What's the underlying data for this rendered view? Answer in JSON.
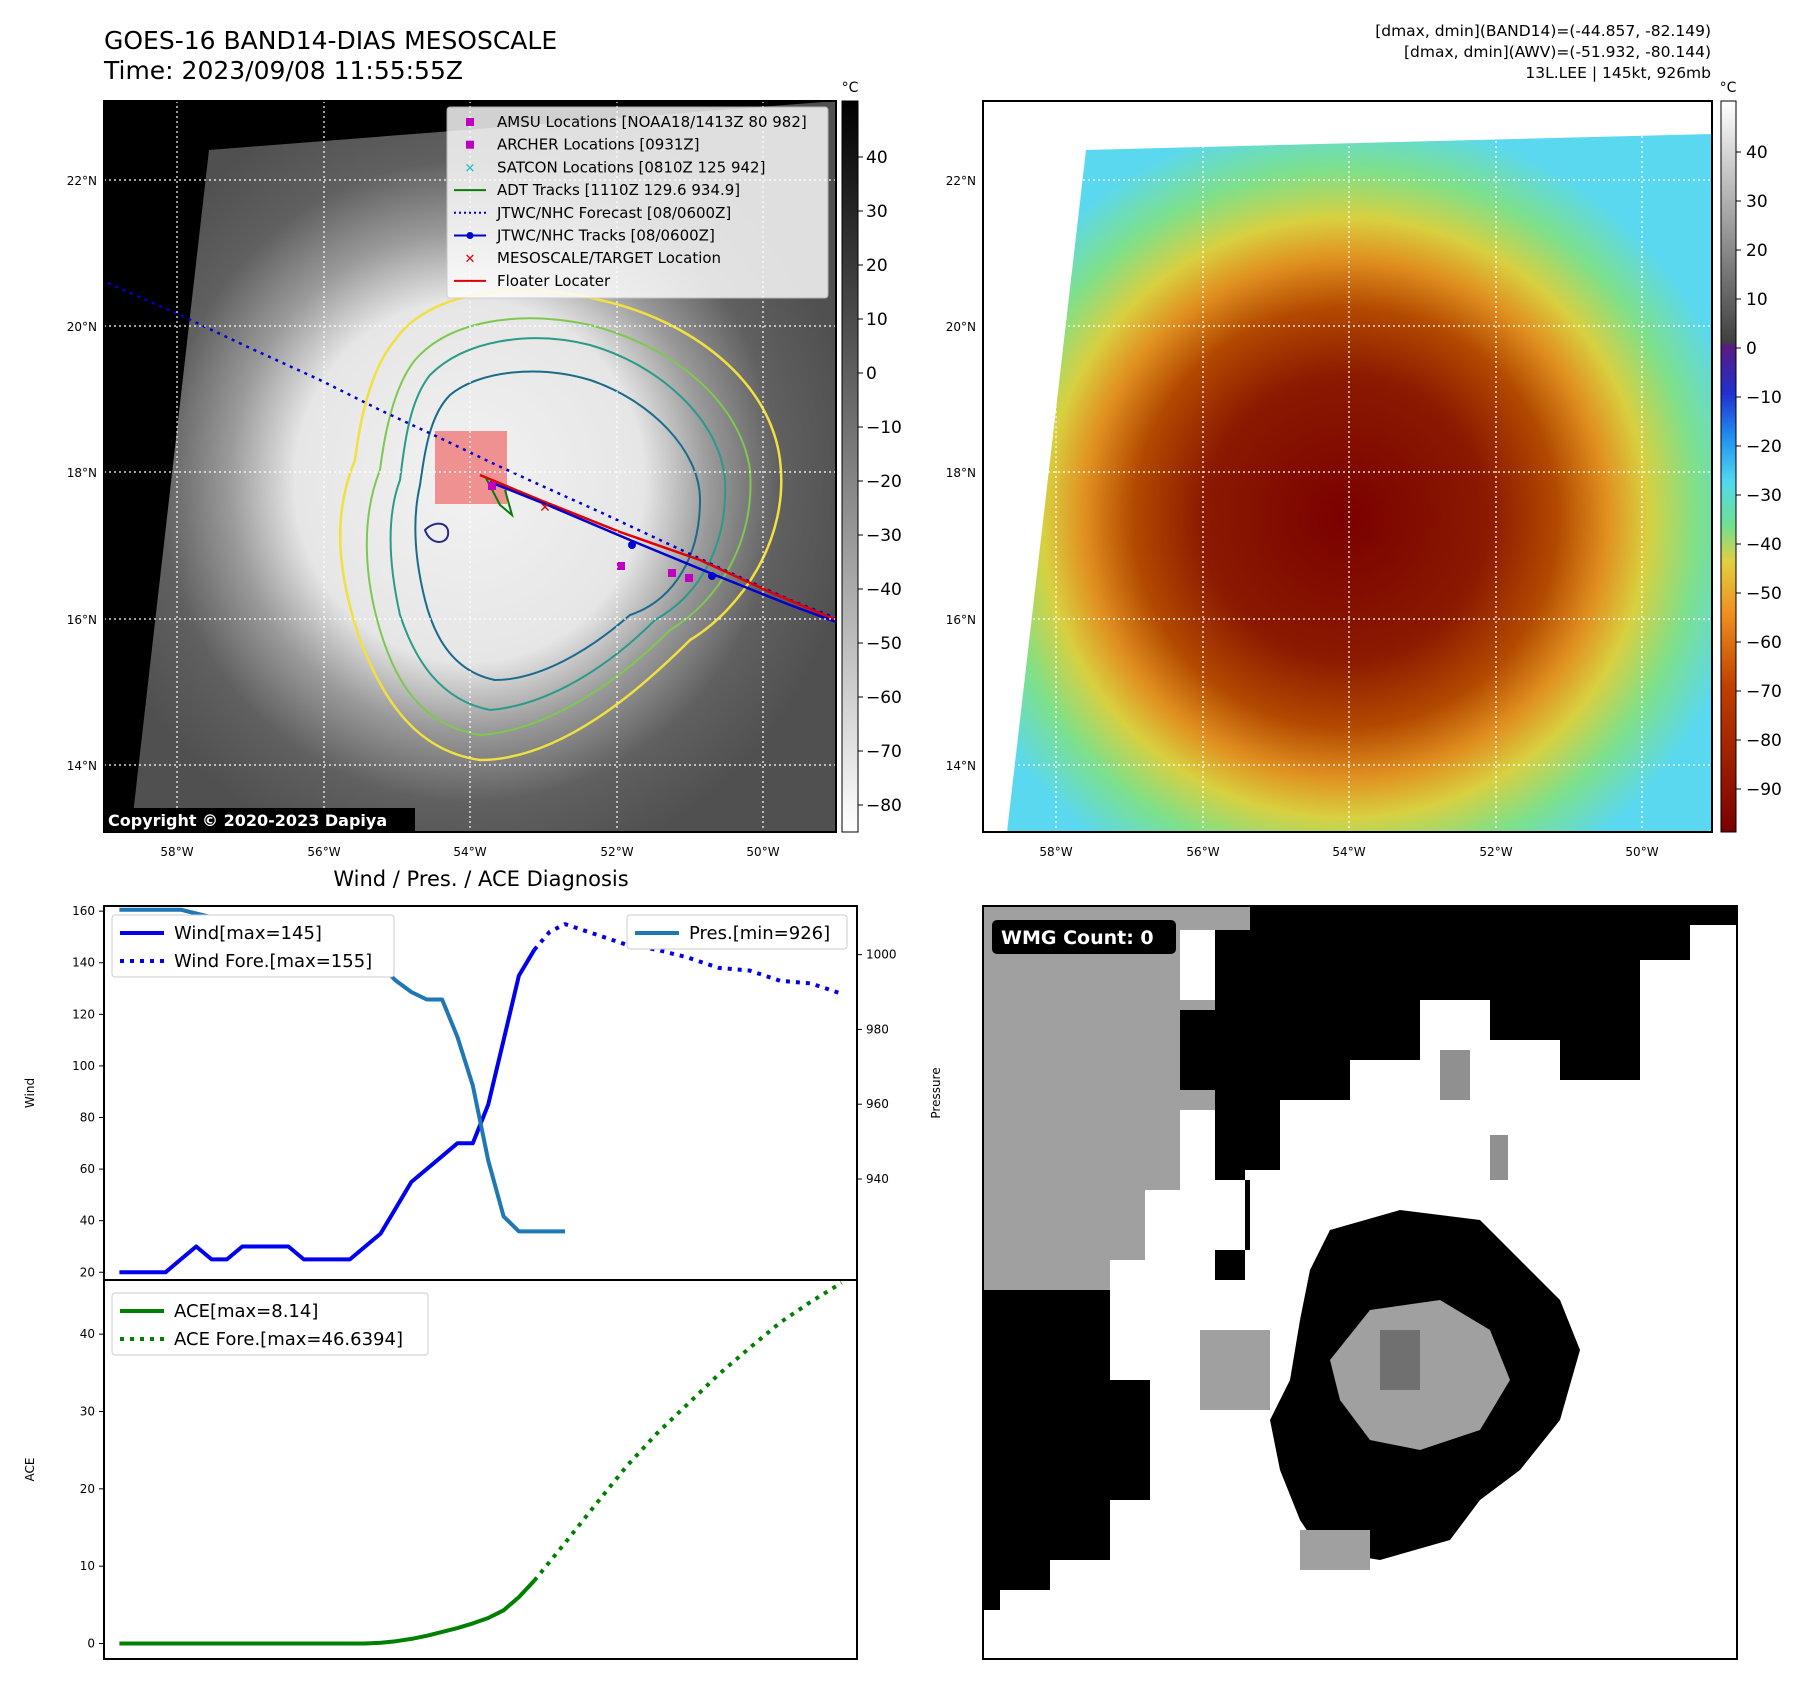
{
  "header": {
    "title": "GOES-16 BAND14-DIAS MESOSCALE",
    "time": "Time: 2023/09/08 11:55:55Z",
    "dmax_band14": "[dmax, dmin](BAND14)=(-44.857, -82.149)",
    "dmax_awv": "[dmax, dmin](AWV)=(-51.932, -80.144)",
    "storm": "13L.LEE | 145kt, 926mb"
  },
  "map_panels": {
    "lon_ticks": [
      "58°W",
      "56°W",
      "54°W",
      "52°W",
      "50°W"
    ],
    "lat_ticks": [
      "22°N",
      "20°N",
      "18°N",
      "16°N",
      "14°N"
    ],
    "colorbar_unit": "°C",
    "left_colorbar_ticks": [
      "40",
      "30",
      "20",
      "10",
      "0",
      "−10",
      "−20",
      "−30",
      "−40",
      "−50",
      "−60",
      "−70",
      "−80"
    ],
    "right_colorbar_ticks": [
      "40",
      "30",
      "20",
      "10",
      "0",
      "−10",
      "−20",
      "−30",
      "−40",
      "−50",
      "−60",
      "−70",
      "−80",
      "−90"
    ],
    "copyright": "Copyright © 2020-2023 Dapiya",
    "legend": [
      {
        "label": "AMSU Locations [NOAA18/1413Z 80 982]",
        "color": "#c000c0",
        "marker": "square"
      },
      {
        "label": "ARCHER Locations [0931Z]",
        "color": "#c000c0",
        "marker": "square"
      },
      {
        "label": "SATCON Locations [0810Z 125 942]",
        "color": "#20c0c0",
        "marker": "x"
      },
      {
        "label": "ADT Tracks [1110Z 129.6 934.9]",
        "color": "#0a7a0a",
        "marker": "line"
      },
      {
        "label": "JTWC/NHC Forecast [08/0600Z]",
        "color": "#0000d0",
        "marker": "dotted"
      },
      {
        "label": "JTWC/NHC Tracks [08/0600Z]",
        "color": "#0000d0",
        "marker": "line-dot"
      },
      {
        "label": "MESOSCALE/TARGET Location",
        "color": "#e00000",
        "marker": "x"
      },
      {
        "label": "Floater Locater",
        "color": "#e00000",
        "marker": "line"
      }
    ]
  },
  "wmg": {
    "label": "WMG Count: 0"
  },
  "chart_data": [
    {
      "type": "line",
      "title": "Wind / Pres. / ACE Diagnosis",
      "ylabel": "Wind",
      "y2label": "Pressure",
      "ylim": [
        17,
        162
      ],
      "y2lim": [
        913,
        1013
      ],
      "yticks": [
        20,
        40,
        60,
        80,
        100,
        120,
        140,
        160
      ],
      "y2ticks": [
        940,
        960,
        980,
        1000
      ],
      "x_range": [
        -1,
        48
      ],
      "series": [
        {
          "name": "Wind[max=145]",
          "axis": "left",
          "style": "solid",
          "color": "#0000ee",
          "x": [
            0,
            1,
            2,
            3,
            4,
            5,
            6,
            7,
            8,
            9,
            10,
            11,
            12,
            13,
            14,
            15,
            16,
            17,
            18,
            19,
            20,
            21,
            22,
            23,
            24,
            25,
            26,
            27
          ],
          "y": [
            20,
            20,
            20,
            20,
            25,
            30,
            25,
            25,
            30,
            30,
            30,
            30,
            25,
            25,
            25,
            25,
            30,
            35,
            45,
            55,
            60,
            65,
            70,
            70,
            85,
            110,
            135,
            145
          ]
        },
        {
          "name": "Wind Fore.[max=155]",
          "axis": "left",
          "style": "dotted",
          "color": "#0000ee",
          "x": [
            27,
            28,
            29,
            31,
            33,
            35,
            37,
            39,
            41,
            43,
            45,
            47
          ],
          "y": [
            145,
            152,
            155,
            151,
            147,
            145,
            142,
            138,
            137,
            133,
            132,
            128
          ]
        },
        {
          "name": "Pres.[min=926]",
          "axis": "right",
          "style": "solid",
          "color": "#1f77b4",
          "x": [
            0,
            3,
            4,
            5,
            6,
            7,
            8,
            9,
            10,
            11,
            12,
            13,
            14,
            15,
            16,
            17,
            18,
            19,
            20,
            21,
            22,
            23,
            24,
            25,
            26,
            27,
            28,
            29
          ],
          "y": [
            1012,
            1012,
            1012,
            1011,
            1010,
            1010,
            1010,
            1009,
            1009,
            1009,
            1009,
            1008,
            1007,
            1005,
            1001,
            997,
            993,
            990,
            988,
            988,
            978,
            965,
            945,
            930,
            926,
            926,
            926,
            926
          ]
        }
      ]
    },
    {
      "type": "line",
      "ylabel": "ACE",
      "ylim": [
        -2,
        47
      ],
      "yticks": [
        0,
        10,
        20,
        30,
        40
      ],
      "x_range": [
        -1,
        48
      ],
      "series": [
        {
          "name": "ACE[max=8.14]",
          "style": "solid",
          "color": "#008000",
          "x": [
            0,
            2,
            4,
            6,
            8,
            10,
            12,
            14,
            16,
            17,
            18,
            19,
            20,
            21,
            22,
            23,
            24,
            25,
            26,
            27
          ],
          "y": [
            0,
            0,
            0,
            0,
            0,
            0,
            0,
            0,
            0,
            0.1,
            0.3,
            0.6,
            1.0,
            1.5,
            2.0,
            2.6,
            3.3,
            4.3,
            6.0,
            8.14
          ]
        },
        {
          "name": "ACE Fore.[max=46.6394]",
          "style": "dotted",
          "color": "#008000",
          "x": [
            27,
            29,
            31,
            33,
            35,
            37,
            39,
            41,
            43,
            45,
            47
          ],
          "y": [
            8.14,
            13.0,
            18.0,
            22.9,
            27.2,
            31.0,
            34.8,
            38.2,
            41.5,
            44.2,
            46.64
          ]
        }
      ]
    }
  ]
}
